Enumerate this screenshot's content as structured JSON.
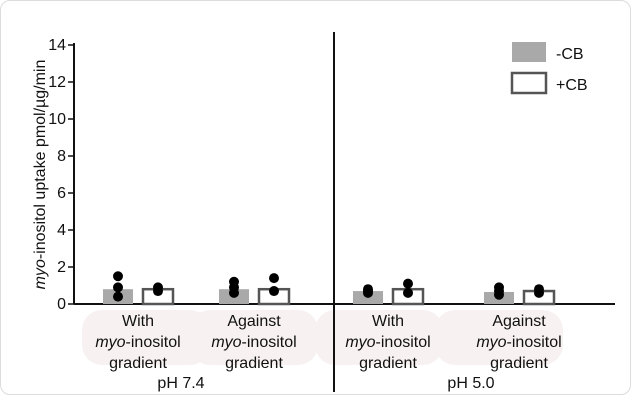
{
  "chart_data": {
    "type": "bar",
    "ylabel": {
      "italic": "myo",
      "rest": "-inositol uptake pmol/µg/min"
    },
    "ylim": [
      0,
      14
    ],
    "yticks": [
      0,
      2,
      4,
      6,
      8,
      10,
      12,
      14
    ],
    "panels": [
      {
        "label": "pH 7.4",
        "groups": [
          {
            "line1": "With",
            "line2_italic": "myo",
            "line2_rest": "-inositol",
            "line3": "gradient"
          },
          {
            "line1": "Against",
            "line2_italic": "myo",
            "line2_rest": "-inositol",
            "line3": "gradient"
          }
        ]
      },
      {
        "label": "pH 5.0",
        "groups": [
          {
            "line1": "With",
            "line2_italic": "myo",
            "line2_rest": "-inositol",
            "line3": "gradient"
          },
          {
            "line1": "Against",
            "line2_italic": "myo",
            "line2_rest": "-inositol",
            "line3": "gradient"
          }
        ]
      }
    ],
    "series": [
      {
        "name": "-CB",
        "style": "filled",
        "color": "#a9a9a9",
        "values": [
          0.8,
          0.8,
          0.7,
          0.65
        ],
        "points": [
          [
            1.5,
            0.9,
            0.4
          ],
          [
            1.2,
            0.9,
            0.6
          ],
          [
            0.8,
            0.7,
            0.6
          ],
          [
            0.9,
            0.7,
            0.5
          ]
        ]
      },
      {
        "name": "+CB",
        "style": "outline",
        "color": "#555555",
        "values": [
          0.8,
          0.8,
          0.8,
          0.7
        ],
        "points": [
          [
            0.9,
            0.7
          ],
          [
            1.4,
            0.7
          ],
          [
            1.1,
            0.6
          ],
          [
            0.8,
            0.6
          ]
        ]
      }
    ],
    "legend_position": "top-right",
    "grid": false
  }
}
